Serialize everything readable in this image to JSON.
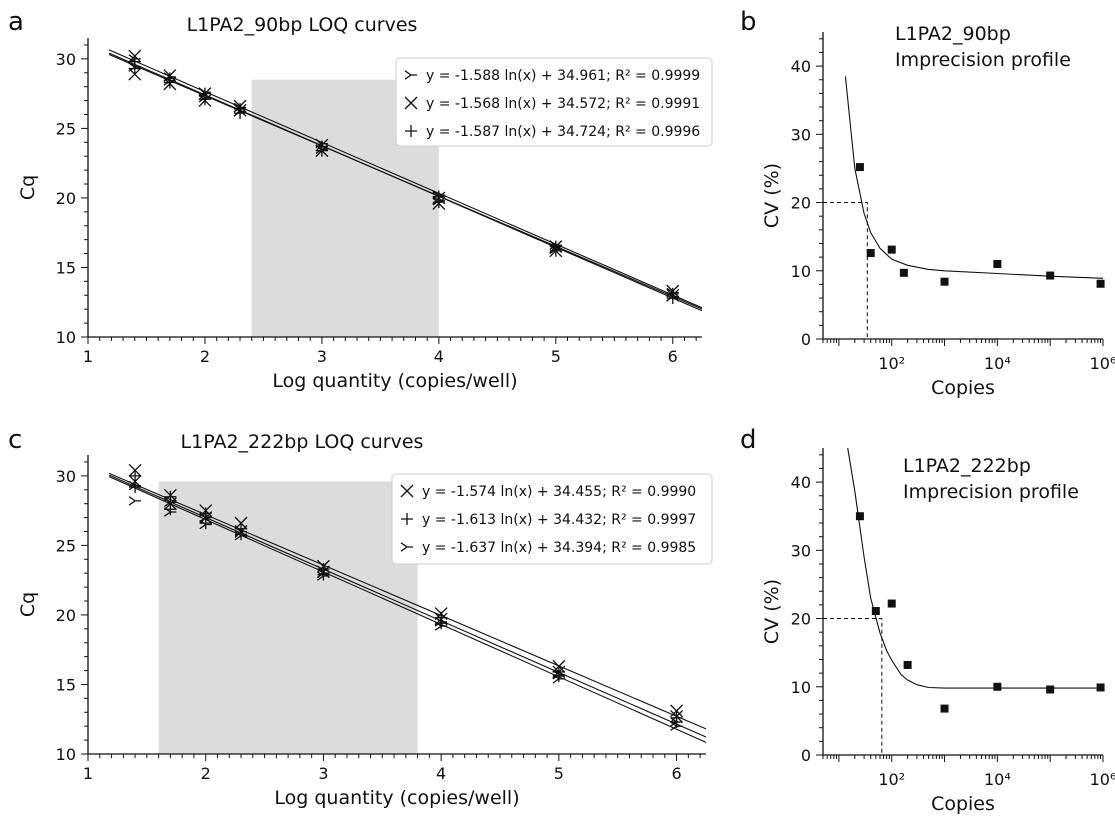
{
  "colors": {
    "shade": "#dcdcdc",
    "ink": "#111111",
    "legend_border": "#cccccc"
  },
  "chart_data": [
    {
      "panel": "a",
      "type": "scatter",
      "title": "L1PA2_90bp LOQ curves",
      "xlabel": "Log quantity (copies/well)",
      "ylabel": "Cq",
      "xlim": [
        1,
        6.25
      ],
      "ylim": [
        10,
        31.5
      ],
      "xticks": [
        1,
        2,
        3,
        4,
        5,
        6
      ],
      "yticks": [
        10,
        15,
        20,
        25,
        30
      ],
      "shaded_region": [
        2.4,
        4.0,
        10,
        28.5
      ],
      "series": [
        {
          "marker": "tri",
          "legend": "y = -1.588 ln(x) + 34.961; R² = 0.9999",
          "slope": -3.657,
          "intercept": 34.961,
          "x": [
            1.4,
            1.4,
            1.7,
            1.7,
            2.0,
            2.0,
            2.3,
            2.3,
            3.0,
            3.0,
            4.0,
            4.0,
            5.0,
            5.0,
            6.0,
            6.0
          ],
          "y": [
            30.0,
            29.4,
            28.7,
            28.4,
            27.6,
            27.2,
            26.5,
            26.2,
            23.9,
            23.5,
            20.2,
            19.8,
            16.6,
            16.3,
            13.2,
            12.9
          ]
        },
        {
          "marker": "x",
          "legend": "y = -1.568 ln(x) + 34.572; R² = 0.9991",
          "slope": -3.61,
          "intercept": 34.572,
          "x": [
            1.4,
            1.4,
            1.7,
            1.7,
            2.0,
            2.0,
            2.3,
            2.3,
            3.0,
            3.0,
            4.0,
            4.0,
            5.0,
            5.0,
            6.0,
            6.0
          ],
          "y": [
            30.2,
            28.9,
            28.8,
            28.2,
            27.5,
            27.0,
            26.6,
            26.3,
            23.8,
            23.4,
            20.0,
            19.6,
            16.5,
            16.2,
            13.3,
            13.0
          ]
        },
        {
          "marker": "plus",
          "legend": "y = -1.587 ln(x) + 34.724; R² = 0.9996",
          "slope": -3.654,
          "intercept": 34.724,
          "x": [
            1.4,
            1.4,
            1.7,
            1.7,
            2.0,
            2.0,
            2.3,
            2.3,
            3.0,
            3.0,
            4.0,
            4.0,
            5.0,
            5.0,
            6.0,
            6.0
          ],
          "y": [
            29.8,
            29.3,
            28.6,
            28.3,
            27.5,
            27.1,
            26.4,
            26.1,
            23.7,
            23.4,
            20.1,
            19.7,
            16.5,
            16.2,
            13.1,
            12.8
          ]
        }
      ]
    },
    {
      "panel": "b",
      "type": "scatter",
      "title": "L1PA2_90bp\nImprecision profile",
      "xlabel": "Copies",
      "ylabel": "CV (%)",
      "xscale": "log",
      "xlim": [
        5,
        1000000
      ],
      "ylim": [
        0,
        45
      ],
      "xtick_labels": [
        "10²",
        "10⁴",
        "10⁶"
      ],
      "xticks": [
        100,
        10000,
        1000000
      ],
      "yticks": [
        0,
        10,
        20,
        30,
        40
      ],
      "points": {
        "x": [
          25,
          40,
          100,
          170,
          1000,
          10000,
          100000,
          900000
        ],
        "y": [
          25.2,
          12.6,
          13.1,
          9.7,
          8.4,
          11.0,
          9.3,
          8.1
        ]
      },
      "fit_curve": {
        "x": [
          13.3,
          20,
          30,
          40,
          60,
          100,
          200,
          500,
          1000,
          10000,
          100000,
          1000000
        ],
        "y": [
          38.5,
          25.0,
          18.4,
          15.6,
          13.3,
          11.7,
          10.8,
          10.2,
          10.0,
          9.6,
          9.2,
          8.9
        ]
      },
      "loq": {
        "x": 34.5,
        "y": 20
      }
    },
    {
      "panel": "c",
      "type": "scatter",
      "title": "L1PA2_222bp LOQ curves",
      "xlabel": "Log quantity (copies/well)",
      "ylabel": "Cq",
      "xlim": [
        1,
        6.25
      ],
      "ylim": [
        10,
        31.5
      ],
      "xticks": [
        1,
        2,
        3,
        4,
        5,
        6
      ],
      "yticks": [
        10,
        15,
        20,
        25,
        30
      ],
      "shaded_region": [
        1.6,
        3.8,
        10,
        29.6
      ],
      "series": [
        {
          "marker": "x",
          "legend": "y = -1.574 ln(x) + 34.455; R² = 0.9990",
          "slope": -3.624,
          "intercept": 34.455,
          "x": [
            1.4,
            1.4,
            1.7,
            1.7,
            2.0,
            2.0,
            2.3,
            2.3,
            3.0,
            3.0,
            4.0,
            4.0,
            5.0,
            5.0,
            6.0,
            6.0
          ],
          "y": [
            30.4,
            29.6,
            28.6,
            28.0,
            27.5,
            27.0,
            26.6,
            26.0,
            23.5,
            23.1,
            20.1,
            19.7,
            16.3,
            15.9,
            13.1,
            12.7
          ]
        },
        {
          "marker": "plus",
          "legend": "y = -1.613 ln(x) + 34.432; R² = 0.9997",
          "slope": -3.714,
          "intercept": 34.432,
          "x": [
            1.4,
            1.4,
            1.7,
            1.7,
            2.0,
            2.0,
            2.3,
            2.3,
            3.0,
            3.0,
            4.0,
            4.0,
            5.0,
            5.0,
            6.0,
            6.0
          ],
          "y": [
            30.0,
            29.2,
            28.5,
            27.6,
            27.3,
            26.6,
            26.2,
            25.8,
            23.3,
            22.9,
            19.8,
            19.4,
            15.9,
            15.6,
            12.6,
            12.3
          ]
        },
        {
          "marker": "tri",
          "legend": "y = -1.637 ln(x) + 34.394; R² = 0.9985",
          "slope": -3.769,
          "intercept": 34.394,
          "x": [
            1.4,
            1.4,
            1.7,
            1.7,
            2.0,
            2.0,
            2.3,
            2.3,
            3.0,
            3.0,
            4.0,
            4.0,
            5.0,
            5.0,
            6.0,
            6.0
          ],
          "y": [
            29.3,
            28.2,
            28.1,
            27.4,
            27.0,
            26.5,
            26.0,
            25.7,
            23.0,
            22.8,
            19.5,
            19.2,
            15.7,
            15.4,
            12.3,
            12.0
          ]
        }
      ]
    },
    {
      "panel": "d",
      "type": "scatter",
      "title": "L1PA2_222bp\nImprecision profile",
      "xlabel": "Copies",
      "ylabel": "CV (%)",
      "xscale": "log",
      "xlim": [
        5,
        1000000
      ],
      "ylim": [
        0,
        45
      ],
      "xtick_labels": [
        "10²",
        "10⁴",
        "10⁶"
      ],
      "xticks": [
        100,
        10000,
        1000000
      ],
      "yticks": [
        0,
        10,
        20,
        30,
        40
      ],
      "points": {
        "x": [
          25,
          50,
          100,
          200,
          1000,
          10000,
          100000,
          900000
        ],
        "y": [
          35.0,
          21.1,
          22.2,
          13.2,
          6.8,
          10.0,
          9.6,
          9.9
        ]
      },
      "fit_curve": {
        "x": [
          14.7,
          20,
          30,
          40,
          60,
          80,
          100,
          150,
          200,
          300,
          500,
          1000,
          10000,
          1000000
        ],
        "y": [
          45.0,
          38.7,
          29.0,
          23.0,
          17.9,
          15.3,
          13.9,
          11.8,
          11.0,
          10.3,
          9.9,
          9.8,
          9.8,
          9.8
        ]
      },
      "loq": {
        "x": 65,
        "y": 20
      }
    }
  ],
  "panel_letters": [
    "a",
    "b",
    "c",
    "d"
  ]
}
